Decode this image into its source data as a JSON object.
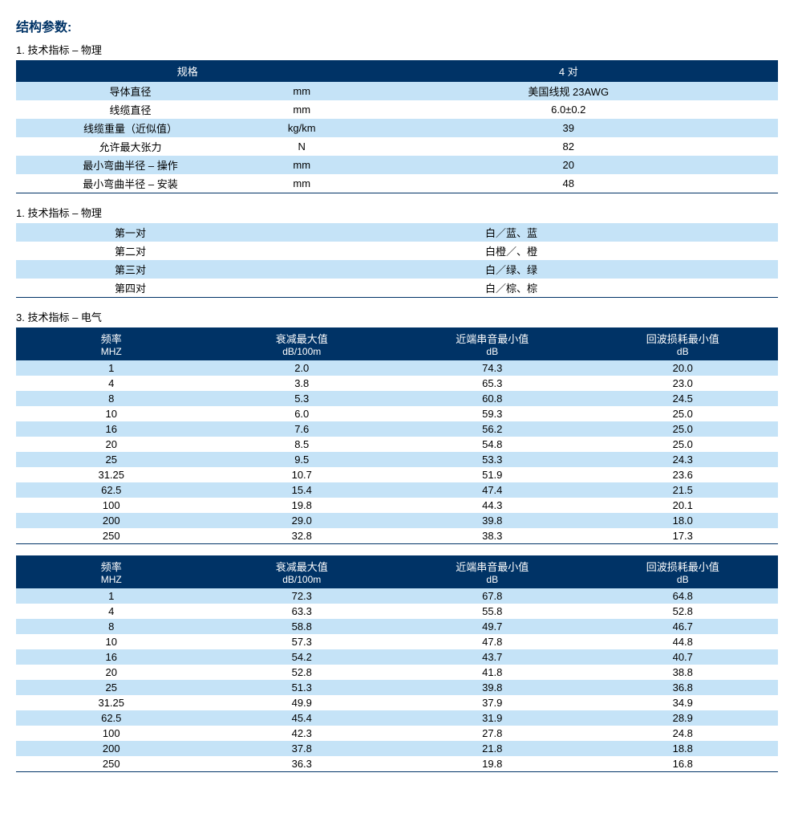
{
  "colors": {
    "header_bg": "#003366",
    "header_text": "#ffffff",
    "stripe_a": "#c5e3f7",
    "stripe_b": "#ffffff",
    "title": "#003366",
    "border": "#003366"
  },
  "title": "结构参数:",
  "section1": {
    "label": "1.  技术指标 – 物理",
    "columns": [
      "规格",
      "",
      "4 对"
    ],
    "rows": [
      [
        "导体直径",
        "mm",
        "美国线规 23AWG"
      ],
      [
        "线缆直径",
        "mm",
        "6.0±0.2"
      ],
      [
        "线缆重量（近似值）",
        "kg/km",
        "39"
      ],
      [
        "允许最大张力",
        "N",
        "82"
      ],
      [
        "最小弯曲半径 – 操作",
        "mm",
        "20"
      ],
      [
        "最小弯曲半径 – 安装",
        "mm",
        "48"
      ]
    ]
  },
  "section2": {
    "label": "1.  技术指标 – 物理",
    "rows": [
      [
        "第一对",
        "白／蓝、蓝"
      ],
      [
        "第二对",
        "白橙／、橙"
      ],
      [
        "第三对",
        "白／绿、绿"
      ],
      [
        "第四对",
        "白／棕、棕"
      ]
    ]
  },
  "section3": {
    "label": "3.  技术指标 – 电气",
    "columns": [
      {
        "top": "频率",
        "bottom": "MHZ"
      },
      {
        "top": "衰减最大值",
        "bottom": "dB/100m"
      },
      {
        "top": "近端串音最小值",
        "bottom": "dB"
      },
      {
        "top": "回波损耗最小值",
        "bottom": "dB"
      }
    ],
    "rows_a": [
      [
        "1",
        "2.0",
        "74.3",
        "20.0"
      ],
      [
        "4",
        "3.8",
        "65.3",
        "23.0"
      ],
      [
        "8",
        "5.3",
        "60.8",
        "24.5"
      ],
      [
        "10",
        "6.0",
        "59.3",
        "25.0"
      ],
      [
        "16",
        "7.6",
        "56.2",
        "25.0"
      ],
      [
        "20",
        "8.5",
        "54.8",
        "25.0"
      ],
      [
        "25",
        "9.5",
        "53.3",
        "24.3"
      ],
      [
        "31.25",
        "10.7",
        "51.9",
        "23.6"
      ],
      [
        "62.5",
        "15.4",
        "47.4",
        "21.5"
      ],
      [
        "100",
        "19.8",
        "44.3",
        "20.1"
      ],
      [
        "200",
        "29.0",
        "39.8",
        "18.0"
      ],
      [
        "250",
        "32.8",
        "38.3",
        "17.3"
      ]
    ],
    "rows_b": [
      [
        "1",
        "72.3",
        "67.8",
        "64.8"
      ],
      [
        "4",
        "63.3",
        "55.8",
        "52.8"
      ],
      [
        "8",
        "58.8",
        "49.7",
        "46.7"
      ],
      [
        "10",
        "57.3",
        "47.8",
        "44.8"
      ],
      [
        "16",
        "54.2",
        "43.7",
        "40.7"
      ],
      [
        "20",
        "52.8",
        "41.8",
        "38.8"
      ],
      [
        "25",
        "51.3",
        "39.8",
        "36.8"
      ],
      [
        "31.25",
        "49.9",
        "37.9",
        "34.9"
      ],
      [
        "62.5",
        "45.4",
        "31.9",
        "28.9"
      ],
      [
        "100",
        "42.3",
        "27.8",
        "24.8"
      ],
      [
        "200",
        "37.8",
        "21.8",
        "18.8"
      ],
      [
        "250",
        "36.3",
        "19.8",
        "16.8"
      ]
    ]
  }
}
